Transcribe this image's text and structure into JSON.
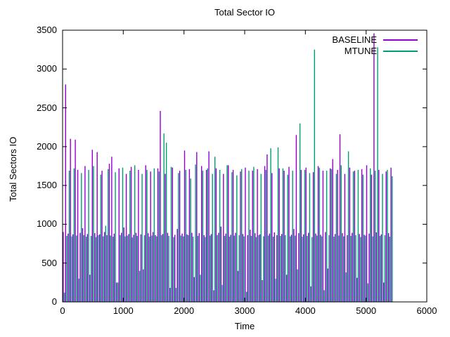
{
  "chart_data": {
    "type": "bar",
    "title": "Total Sector IO",
    "xlabel": "Time",
    "ylabel": "Total Sectors IO",
    "xlim": [
      0,
      6000
    ],
    "ylim": [
      0,
      3500
    ],
    "x_ticks": [
      0,
      1000,
      2000,
      3000,
      4000,
      5000,
      6000
    ],
    "y_ticks": [
      0,
      500,
      1000,
      1500,
      2000,
      2500,
      3000,
      3500
    ],
    "grid": false,
    "legend_position": "top-right-inside",
    "style": "impulses",
    "colors": {
      "border": "#000000",
      "text": "#000000",
      "background": "#ffffff"
    },
    "series": [
      {
        "name": "BASELINE",
        "color": "#9400d3",
        "t0": 10,
        "dt": 40,
        "values": [
          900,
          2800,
          880,
          2100,
          870,
          2090,
          1700,
          890,
          950,
          1750,
          875,
          350,
          1960,
          885,
          1930,
          870,
          1690,
          900,
          860,
          1780,
          1870,
          880,
          250,
          1720,
          890,
          960,
          1650,
          875,
          1740,
          865,
          890,
          1700,
          870,
          420,
          1760,
          885,
          1680,
          900,
          860,
          1720,
          2460,
          875,
          1650,
          890,
          180,
          1730,
          865,
          940,
          1690,
          880,
          1950,
          870,
          1710,
          890,
          320,
          1930,
          885,
          1750,
          860,
          1700,
          1940,
          875,
          150,
          1720,
          890,
          970,
          1650,
          880,
          1760,
          865,
          1700,
          890,
          400,
          1680,
          875,
          1730,
          860,
          930,
          1690,
          885,
          1710,
          870,
          280,
          1750,
          1900,
          880,
          1660,
          895,
          860,
          1720,
          875,
          1690,
          350,
          1740,
          865,
          940,
          2150,
          885,
          1700,
          870,
          1730,
          890,
          200,
          1670,
          880,
          1750,
          865,
          1690,
          900,
          430,
          1720,
          1840,
          875,
          1700,
          2160,
          885,
          1650,
          860,
          1730,
          890,
          1690,
          310,
          875,
          1710,
          865,
          1760,
          880,
          1640,
          3460,
          895,
          1700,
          870,
          250,
          1680,
          885,
          1730
        ]
      },
      {
        "name": "MTUNE",
        "color": "#009e73",
        "t0": 30,
        "dt": 40,
        "values": [
          120,
          850,
          1690,
          845,
          1720,
          855,
          300,
          1660,
          860,
          840,
          1700,
          850,
          1750,
          835,
          860,
          1640,
          845,
          980,
          1710,
          855,
          840,
          1670,
          250,
          860,
          1730,
          845,
          855,
          1690,
          830,
          1760,
          850,
          400,
          1650,
          860,
          1700,
          840,
          855,
          1720,
          845,
          1680,
          860,
          2170,
          2050,
          850,
          1740,
          835,
          180,
          1660,
          855,
          845,
          1700,
          860,
          1590,
          840,
          1770,
          850,
          350,
          1690,
          835,
          1720,
          855,
          1650,
          1870,
          860,
          1700,
          220,
          850,
          1760,
          840,
          1670,
          855,
          1630,
          860,
          1710,
          845,
          130,
          1690,
          850,
          1740,
          835,
          860,
          1650,
          845,
          1700,
          855,
          1980,
          840,
          300,
          1990,
          850,
          1720,
          860,
          1640,
          845,
          1690,
          855,
          420,
          2300,
          840,
          1700,
          850,
          1660,
          835,
          3250,
          855,
          1730,
          845,
          150,
          1690,
          860,
          1710,
          840,
          1650,
          855,
          1760,
          845,
          380,
          1940,
          850,
          1680,
          860,
          1700,
          835,
          1640,
          855,
          240,
          1720,
          845,
          1690,
          3280,
          850,
          1650,
          860,
          1700,
          840,
          1620
        ]
      }
    ]
  }
}
